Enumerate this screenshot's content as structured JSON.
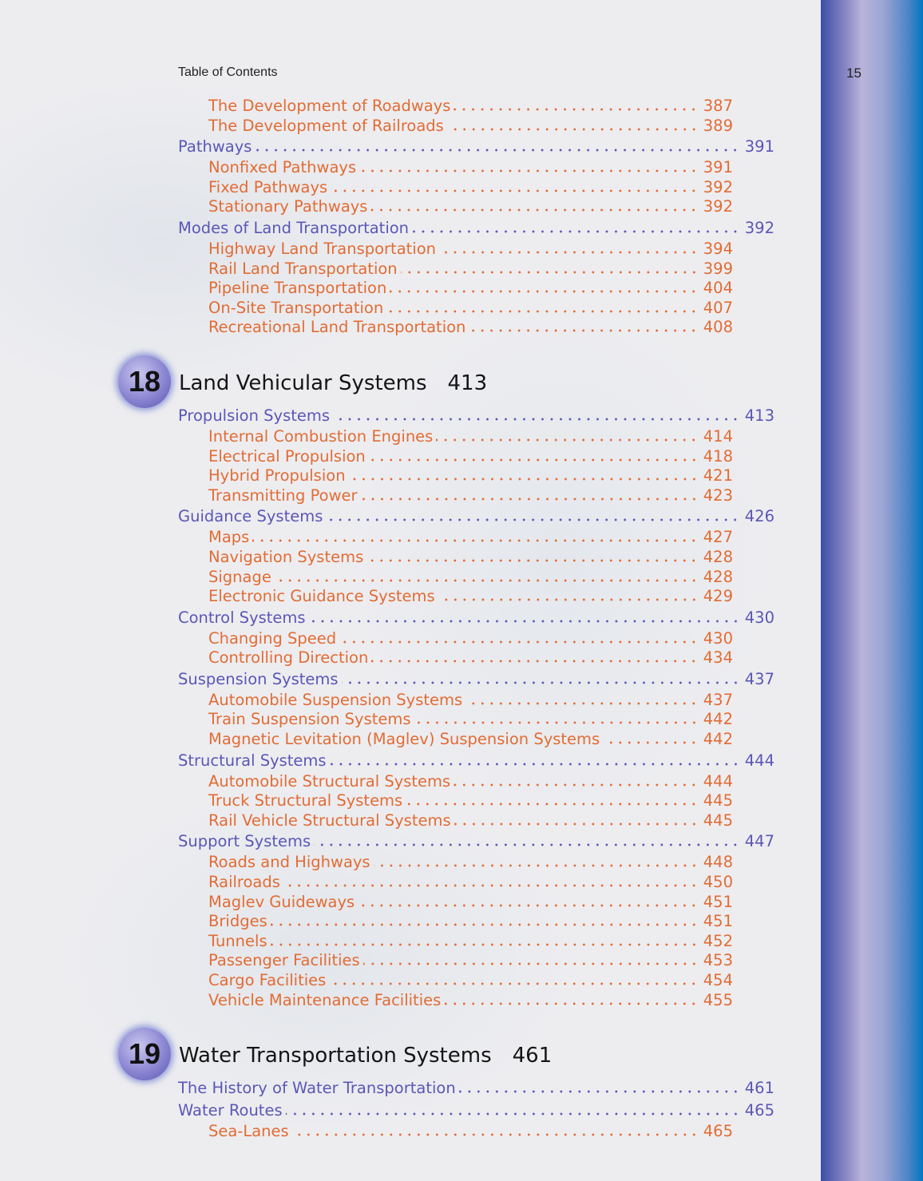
{
  "running_head": "Table of Contents",
  "page_number": "15",
  "colors": {
    "section": "#5b57b6",
    "subsection": "#e26c34",
    "chapter_title": "#151515"
  },
  "toc": [
    {
      "type": "entry",
      "level": 2,
      "title": "The Development of Roadways",
      "page": "387"
    },
    {
      "type": "entry",
      "level": 2,
      "title": "The Development of Railroads",
      "page": "389"
    },
    {
      "type": "entry",
      "level": 1,
      "title": "Pathways",
      "page": "391"
    },
    {
      "type": "entry",
      "level": 2,
      "title": "Nonfixed Pathways",
      "page": "391"
    },
    {
      "type": "entry",
      "level": 2,
      "title": "Fixed Pathways",
      "page": "392"
    },
    {
      "type": "entry",
      "level": 2,
      "title": "Stationary Pathways",
      "page": "392"
    },
    {
      "type": "entry",
      "level": 1,
      "title": "Modes of Land Transportation",
      "page": "392"
    },
    {
      "type": "entry",
      "level": 2,
      "title": "Highway Land Transportation",
      "page": "394"
    },
    {
      "type": "entry",
      "level": 2,
      "title": "Rail Land Transportation",
      "page": "399"
    },
    {
      "type": "entry",
      "level": 2,
      "title": "Pipeline Transportation",
      "page": "404"
    },
    {
      "type": "entry",
      "level": 2,
      "title": "On-Site Transportation",
      "page": "407"
    },
    {
      "type": "entry",
      "level": 2,
      "title": "Recreational Land Transportation",
      "page": "408"
    },
    {
      "type": "chapter",
      "number": "18",
      "title": "Land Vehicular Systems",
      "page": "413"
    },
    {
      "type": "entry",
      "level": 1,
      "title": "Propulsion Systems",
      "page": "413"
    },
    {
      "type": "entry",
      "level": 2,
      "title": "Internal Combustion Engines",
      "page": "414"
    },
    {
      "type": "entry",
      "level": 2,
      "title": "Electrical Propulsion",
      "page": "418"
    },
    {
      "type": "entry",
      "level": 2,
      "title": "Hybrid Propulsion",
      "page": "421"
    },
    {
      "type": "entry",
      "level": 2,
      "title": "Transmitting Power",
      "page": "423"
    },
    {
      "type": "entry",
      "level": 1,
      "title": "Guidance Systems",
      "page": "426"
    },
    {
      "type": "entry",
      "level": 2,
      "title": "Maps",
      "page": "427"
    },
    {
      "type": "entry",
      "level": 2,
      "title": "Navigation Systems",
      "page": "428"
    },
    {
      "type": "entry",
      "level": 2,
      "title": "Signage",
      "page": "428"
    },
    {
      "type": "entry",
      "level": 2,
      "title": "Electronic Guidance Systems",
      "page": "429"
    },
    {
      "type": "entry",
      "level": 1,
      "title": "Control Systems",
      "page": "430"
    },
    {
      "type": "entry",
      "level": 2,
      "title": "Changing Speed",
      "page": "430"
    },
    {
      "type": "entry",
      "level": 2,
      "title": "Controlling Direction",
      "page": "434"
    },
    {
      "type": "entry",
      "level": 1,
      "title": "Suspension Systems",
      "page": "437"
    },
    {
      "type": "entry",
      "level": 2,
      "title": "Automobile Suspension Systems",
      "page": "437"
    },
    {
      "type": "entry",
      "level": 2,
      "title": "Train Suspension Systems",
      "page": "442"
    },
    {
      "type": "entry",
      "level": 2,
      "title": "Magnetic Levitation (Maglev) Suspension Systems",
      "page": "442"
    },
    {
      "type": "entry",
      "level": 1,
      "title": "Structural Systems",
      "page": "444"
    },
    {
      "type": "entry",
      "level": 2,
      "title": "Automobile Structural Systems",
      "page": "444"
    },
    {
      "type": "entry",
      "level": 2,
      "title": "Truck Structural Systems",
      "page": "445"
    },
    {
      "type": "entry",
      "level": 2,
      "title": "Rail Vehicle Structural Systems",
      "page": "445"
    },
    {
      "type": "entry",
      "level": 1,
      "title": "Support Systems",
      "page": "447"
    },
    {
      "type": "entry",
      "level": 2,
      "title": "Roads and Highways",
      "page": "448"
    },
    {
      "type": "entry",
      "level": 2,
      "title": "Railroads",
      "page": "450"
    },
    {
      "type": "entry",
      "level": 2,
      "title": "Maglev Guideways",
      "page": "451"
    },
    {
      "type": "entry",
      "level": 2,
      "title": "Bridges",
      "page": "451"
    },
    {
      "type": "entry",
      "level": 2,
      "title": "Tunnels",
      "page": "452"
    },
    {
      "type": "entry",
      "level": 2,
      "title": "Passenger Facilities",
      "page": "453"
    },
    {
      "type": "entry",
      "level": 2,
      "title": "Cargo Facilities",
      "page": "454"
    },
    {
      "type": "entry",
      "level": 2,
      "title": "Vehicle Maintenance Facilities",
      "page": "455"
    },
    {
      "type": "chapter",
      "number": "19",
      "title": "Water Transportation Systems",
      "page": "461"
    },
    {
      "type": "entry",
      "level": 1,
      "title": "The History of Water Transportation",
      "page": "461"
    },
    {
      "type": "entry",
      "level": 1,
      "title": "Water Routes",
      "page": "465"
    },
    {
      "type": "entry",
      "level": 2,
      "title": "Sea-Lanes",
      "page": "465"
    }
  ]
}
